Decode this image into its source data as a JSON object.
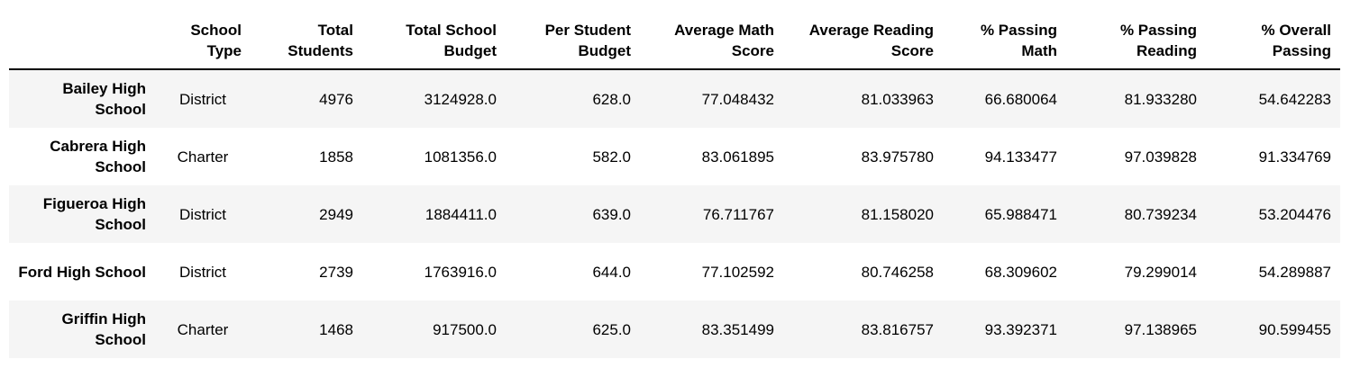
{
  "columns": [
    "",
    "School Type",
    "Total Students",
    "Total School Budget",
    "Per Student Budget",
    "Average Math Score",
    "Average Reading Score",
    "% Passing Math",
    "% Passing Reading",
    "% Overall Passing"
  ],
  "rows": [
    {
      "name": "Bailey High School",
      "type": "District",
      "students": "4976",
      "budget": "3124928.0",
      "per_student": "628.0",
      "avg_math": "77.048432",
      "avg_reading": "81.033963",
      "pass_math": "66.680064",
      "pass_reading": "81.933280",
      "overall": "54.642283"
    },
    {
      "name": "Cabrera High School",
      "type": "Charter",
      "students": "1858",
      "budget": "1081356.0",
      "per_student": "582.0",
      "avg_math": "83.061895",
      "avg_reading": "83.975780",
      "pass_math": "94.133477",
      "pass_reading": "97.039828",
      "overall": "91.334769"
    },
    {
      "name": "Figueroa High School",
      "type": "District",
      "students": "2949",
      "budget": "1884411.0",
      "per_student": "639.0",
      "avg_math": "76.711767",
      "avg_reading": "81.158020",
      "pass_math": "65.988471",
      "pass_reading": "80.739234",
      "overall": "53.204476"
    },
    {
      "name": "Ford High School",
      "type": "District",
      "students": "2739",
      "budget": "1763916.0",
      "per_student": "644.0",
      "avg_math": "77.102592",
      "avg_reading": "80.746258",
      "pass_math": "68.309602",
      "pass_reading": "79.299014",
      "overall": "54.289887"
    },
    {
      "name": "Griffin High School",
      "type": "Charter",
      "students": "1468",
      "budget": "917500.0",
      "per_student": "625.0",
      "avg_math": "83.351499",
      "avg_reading": "83.816757",
      "pass_math": "93.392371",
      "pass_reading": "97.138965",
      "overall": "90.599455"
    }
  ]
}
